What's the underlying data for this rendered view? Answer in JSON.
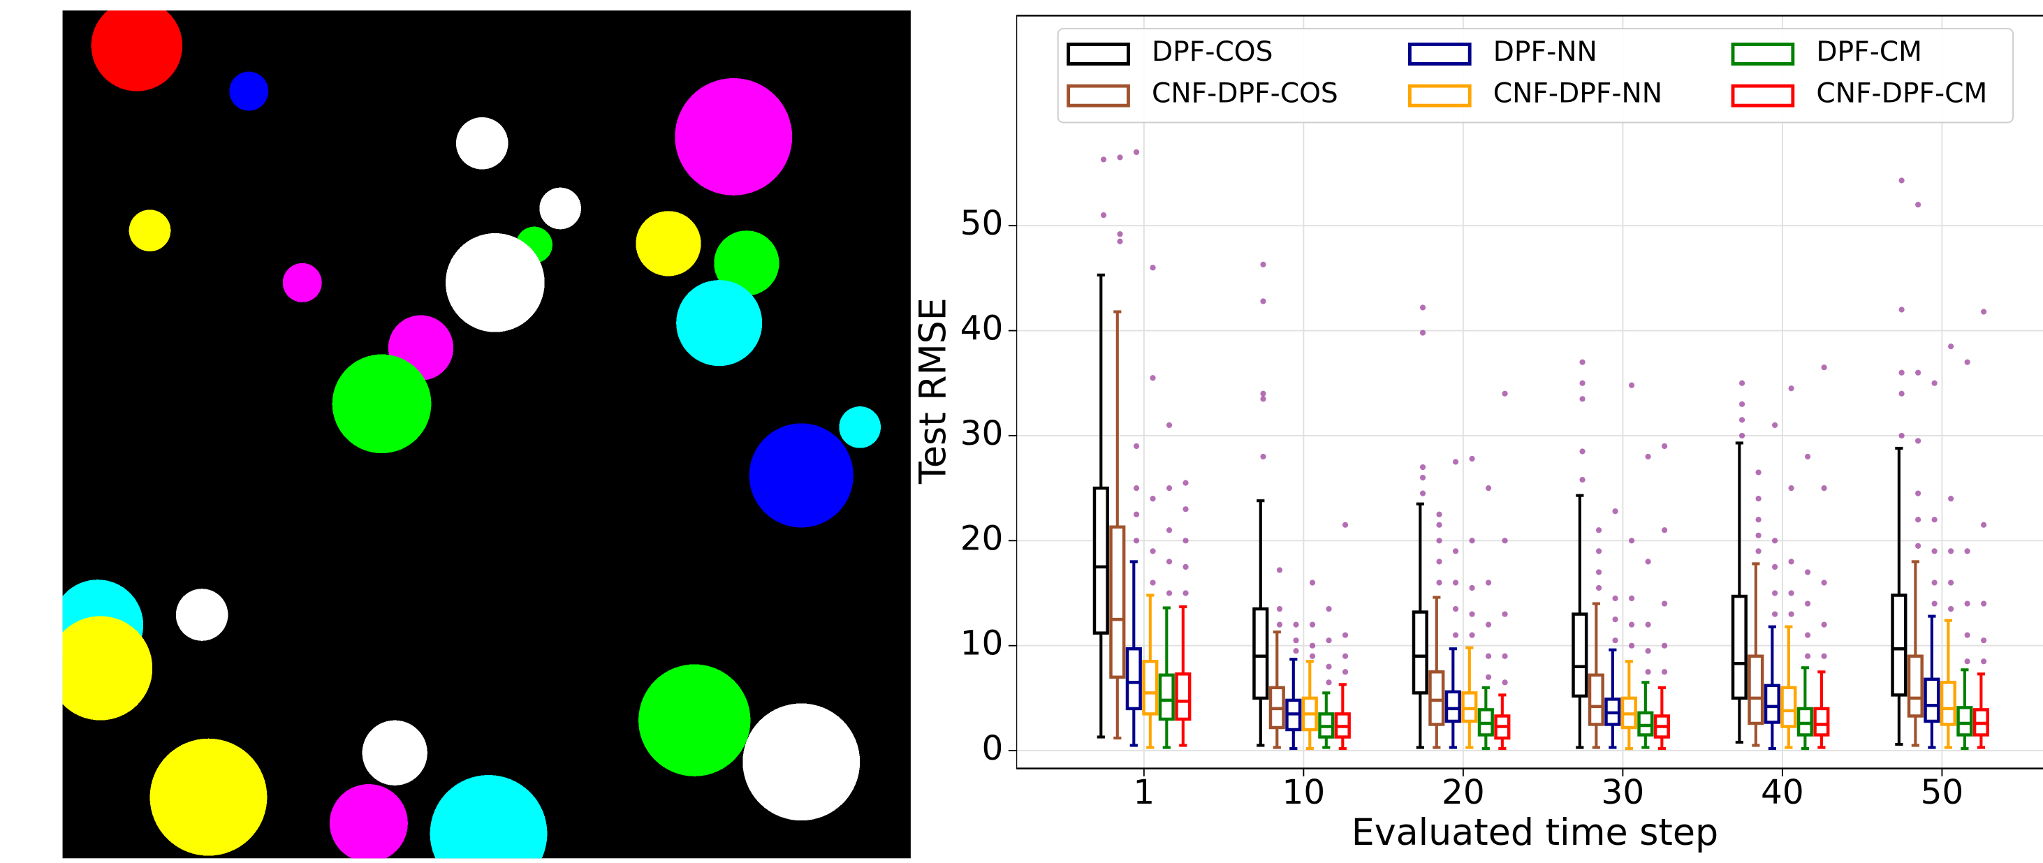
{
  "chart_data": {
    "type": "box",
    "x_label": "Evaluated time step",
    "y_label": "Test RMSE",
    "categories": [
      "1",
      "10",
      "20",
      "30",
      "40",
      "50"
    ],
    "ylim": [
      -1.7,
      70
    ],
    "yticks": [
      0,
      10,
      20,
      30,
      40,
      50
    ],
    "grid": true,
    "legend": "top",
    "outlier_color": "#9b3f9b",
    "series": [
      {
        "name": "DPF-COS",
        "color": "#000000",
        "boxes": [
          [
            1.3,
            11.2,
            17.5,
            25,
            45.3
          ],
          [
            0.5,
            5,
            9,
            13.5,
            23.8
          ],
          [
            0.3,
            5.5,
            9,
            13.2,
            23.5
          ],
          [
            0.3,
            5.2,
            8,
            13,
            24.3
          ],
          [
            0.8,
            5,
            8.3,
            14.7,
            29.3
          ],
          [
            0.6,
            5.3,
            9.7,
            14.8,
            28.8
          ]
        ],
        "outliers": [
          [
            51,
            56.3
          ],
          [
            28,
            33.5,
            34,
            42.8,
            46.3
          ],
          [
            24.5,
            26,
            27,
            39.8,
            42.2
          ],
          [
            25.8,
            28.5,
            33.5,
            35,
            37
          ],
          [
            30,
            31.5,
            33,
            35
          ],
          [
            30,
            34,
            36,
            42,
            54.3
          ]
        ]
      },
      {
        "name": "CNF-DPF-COS",
        "color": "#a0522d",
        "boxes": [
          [
            1.2,
            7,
            12.5,
            21.3,
            41.8
          ],
          [
            0.3,
            2.2,
            4,
            6,
            11.3
          ],
          [
            0.3,
            2.5,
            4.8,
            7.5,
            14.6
          ],
          [
            0.3,
            2.5,
            4.2,
            7.2,
            14
          ],
          [
            0.5,
            2.6,
            5,
            9,
            17.8
          ],
          [
            0.5,
            3.3,
            5,
            9,
            18
          ]
        ],
        "outliers": [
          [
            48.5,
            49.2,
            56.5
          ],
          [
            12,
            13.5,
            17.2
          ],
          [
            16,
            18,
            20,
            21.5,
            22.5
          ],
          [
            15.5,
            17,
            19,
            21
          ],
          [
            19,
            20.5,
            22,
            24,
            26.5
          ],
          [
            19.5,
            22,
            24.5,
            29.5,
            36,
            52
          ]
        ]
      },
      {
        "name": "DPF-NN",
        "color": "#00008b",
        "boxes": [
          [
            0.5,
            4,
            6.5,
            9.7,
            18
          ],
          [
            0.2,
            2,
            3.5,
            4.8,
            8.7
          ],
          [
            0.3,
            2.8,
            4,
            5.6,
            9.7
          ],
          [
            0.3,
            2.5,
            3.6,
            4.9,
            9.6
          ],
          [
            0.2,
            2.7,
            4.2,
            6.2,
            11.8
          ],
          [
            0.3,
            2.8,
            4.3,
            6.8,
            12.8
          ]
        ],
        "outliers": [
          [
            20,
            22.5,
            25,
            29,
            57
          ],
          [
            9.5,
            10.5,
            12
          ],
          [
            11,
            13.5,
            16,
            19,
            27.5
          ],
          [
            10.5,
            12.5,
            14.5,
            22.8
          ],
          [
            13,
            15,
            17.5,
            20,
            31
          ],
          [
            14,
            16,
            19,
            22,
            35
          ]
        ]
      },
      {
        "name": "CNF-DPF-NN",
        "color": "#ffa500",
        "boxes": [
          [
            0.3,
            3.5,
            5.5,
            8.5,
            14.8
          ],
          [
            0.2,
            2,
            3.5,
            5,
            8.5
          ],
          [
            0.3,
            2.8,
            4,
            5.5,
            9.8
          ],
          [
            0.2,
            2.2,
            3.5,
            5,
            8.5
          ],
          [
            0.3,
            2.3,
            3.8,
            6,
            11.8
          ],
          [
            0.3,
            2.5,
            4,
            6.5,
            12.4
          ]
        ],
        "outliers": [
          [
            16,
            19,
            24,
            35.5,
            46
          ],
          [
            9,
            10,
            12,
            16
          ],
          [
            11,
            13,
            15.5,
            20,
            27.8
          ],
          [
            10,
            12,
            14.5,
            20,
            34.8
          ],
          [
            13,
            15,
            18,
            25,
            34.5
          ],
          [
            13.5,
            16,
            19,
            24,
            38.5
          ]
        ]
      },
      {
        "name": "DPF-CM",
        "color": "#008000",
        "boxes": [
          [
            0.3,
            3,
            4.8,
            7.2,
            13.6
          ],
          [
            0.3,
            1.3,
            2.3,
            3.5,
            5.5
          ],
          [
            0.2,
            1.5,
            2.6,
            3.9,
            6
          ],
          [
            0.3,
            1.5,
            2.4,
            3.6,
            6.5
          ],
          [
            0.2,
            1.5,
            2.6,
            4,
            7.9
          ],
          [
            0.2,
            1.5,
            2.6,
            4.1,
            7.7
          ]
        ],
        "outliers": [
          [
            15,
            18,
            21,
            25,
            31
          ],
          [
            6.5,
            8,
            10.5,
            13.5
          ],
          [
            7,
            9,
            12,
            16,
            25
          ],
          [
            7.5,
            9.5,
            12,
            18,
            28
          ],
          [
            9,
            11,
            14,
            17,
            28
          ],
          [
            8.5,
            11,
            14,
            19,
            37
          ]
        ]
      },
      {
        "name": "CNF-DPF-CM",
        "color": "#ff0000",
        "boxes": [
          [
            0.5,
            3,
            4.7,
            7.3,
            13.7
          ],
          [
            0.2,
            1.3,
            2.3,
            3.5,
            6.3
          ],
          [
            0.2,
            1.2,
            2.3,
            3.3,
            5.3
          ],
          [
            0.2,
            1.3,
            2.3,
            3.3,
            6
          ],
          [
            0.3,
            1.5,
            2.5,
            4,
            7.5
          ],
          [
            0.3,
            1.5,
            2.6,
            3.9,
            7.3
          ]
        ],
        "outliers": [
          [
            15,
            17.5,
            20,
            23,
            25.5
          ],
          [
            7.5,
            9,
            11,
            21.5
          ],
          [
            6.5,
            9,
            13,
            20,
            34
          ],
          [
            7.5,
            10,
            14,
            21,
            29
          ],
          [
            9,
            12,
            16,
            25,
            36.5
          ],
          [
            8.5,
            10.5,
            14,
            21.5,
            41.8
          ]
        ]
      }
    ]
  }
}
